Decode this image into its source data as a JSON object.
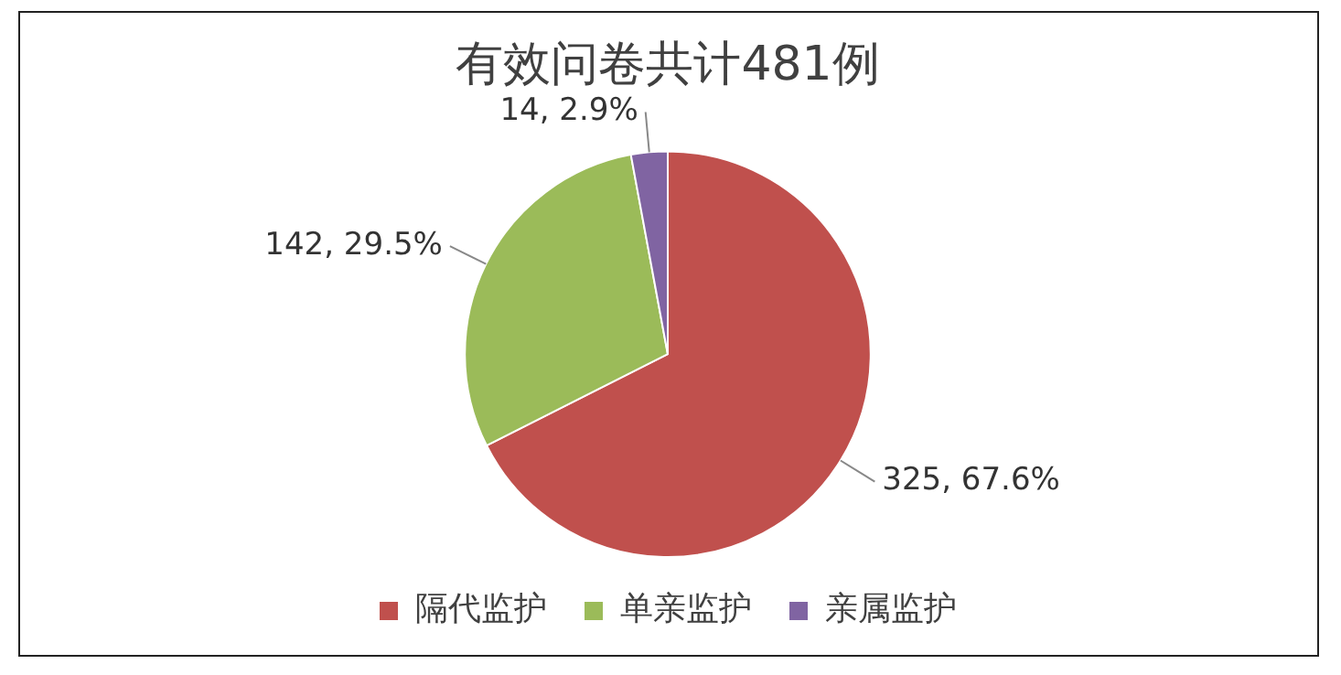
{
  "chart_data": {
    "type": "pie",
    "title": "有效问卷共计481例",
    "categories": [
      "隔代监护",
      "单亲监护",
      "亲属监护"
    ],
    "values": [
      325,
      142,
      14
    ],
    "value_labels": [
      "325, 67.6%",
      "142, 29.5%",
      "14, 2.9%"
    ],
    "colors": [
      "#c0504d",
      "#9bbb59",
      "#8064a2"
    ],
    "legend": "bottom"
  }
}
